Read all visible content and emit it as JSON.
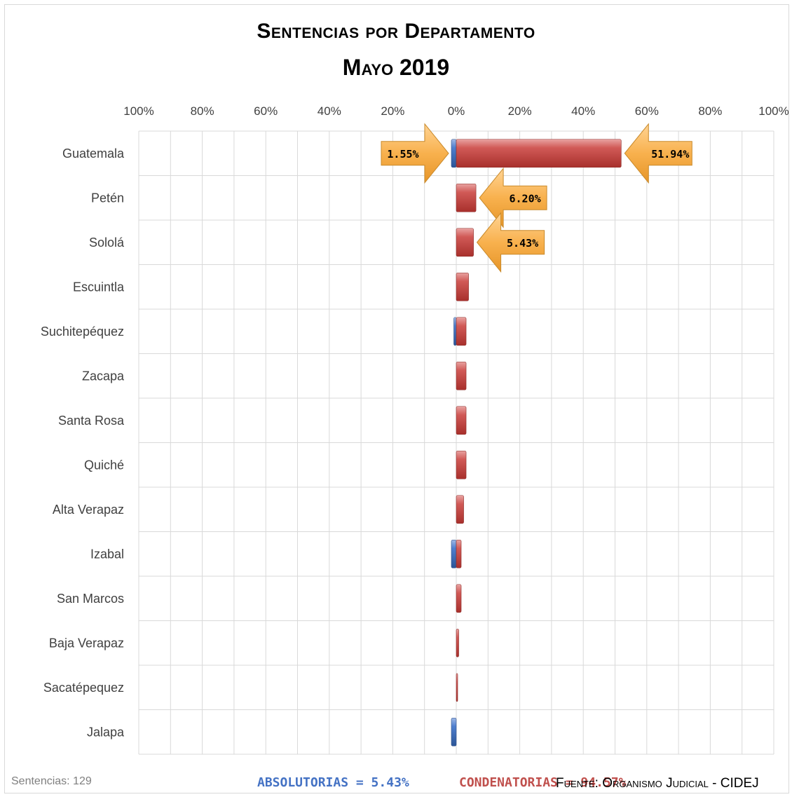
{
  "chart_data": {
    "type": "bar",
    "orientation": "horizontal-diverging",
    "title": "Sentencias por Departamento",
    "subtitle": "Mayo 2019",
    "x_ticks": [
      "100%",
      "80%",
      "60%",
      "40%",
      "20%",
      "0%",
      "20%",
      "40%",
      "60%",
      "80%",
      "100%"
    ],
    "xlim": [
      -100,
      100
    ],
    "categories": [
      "Guatemala",
      "Petén",
      "Sololá",
      "Escuintla",
      "Suchitepéquez",
      "Zacapa",
      "Santa Rosa",
      "Quiché",
      "Alta Verapaz",
      "Izabal",
      "San Marcos",
      "Baja Verapaz",
      "Sacatépequez",
      "Jalapa"
    ],
    "series": [
      {
        "key": "absolutorias",
        "color": "#4472c4",
        "values": [
          1.55,
          0,
          0,
          0,
          0.78,
          0,
          0,
          0,
          0,
          1.55,
          0,
          0,
          0,
          1.55
        ]
      },
      {
        "key": "condenatorias",
        "color": "#c0504d",
        "values": [
          51.94,
          6.2,
          5.43,
          3.88,
          3.1,
          3.1,
          3.1,
          3.1,
          2.33,
          1.55,
          1.55,
          0.78,
          0.2,
          0
        ]
      }
    ],
    "callouts": [
      {
        "category": "Guatemala",
        "series": "absolutorias",
        "label": "1.55%"
      },
      {
        "category": "Guatemala",
        "series": "condenatorias",
        "label": "51.94%"
      },
      {
        "category": "Petén",
        "series": "condenatorias",
        "label": "6.20%"
      },
      {
        "category": "Sololá",
        "series": "condenatorias",
        "label": "5.43%"
      }
    ],
    "grid": true
  },
  "title_line1": "Sentencias por Departamento",
  "title_line2": "Mayo 2019",
  "footer": {
    "sentencias": "Sentencias: 129",
    "absolutorias": "ABSOLUTORIAS = 5.43%",
    "condenatorias": "CONDENATORIAS = 94.57%",
    "fuente": "Fuente: Organismo Judicial - CIDEJ"
  }
}
